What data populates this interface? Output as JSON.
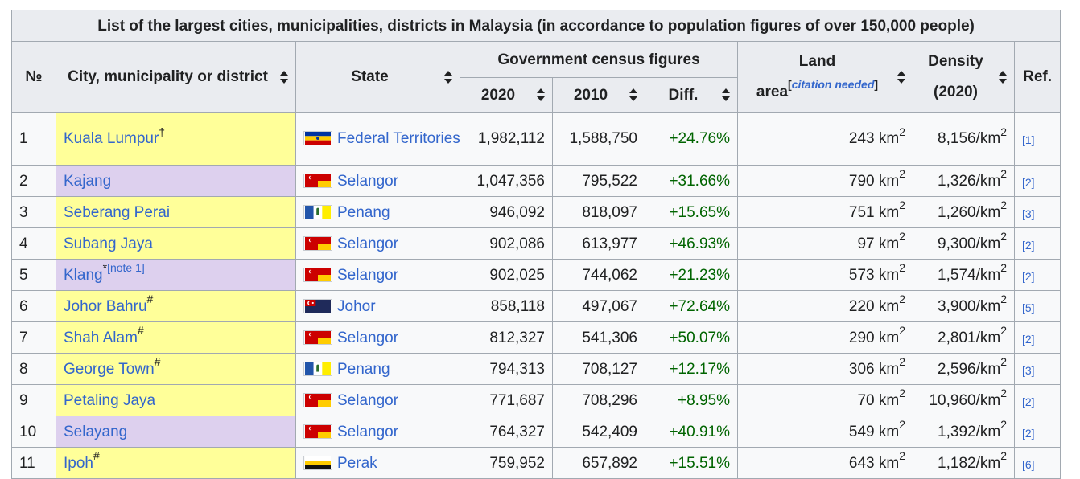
{
  "caption": "List of the largest cities, municipalities, districts in Malaysia (in accordance to population figures of over 150,000 people)",
  "headers": {
    "no": "№",
    "city": "City, municipality or district",
    "state": "State",
    "census_group": "Government census figures",
    "y2020": "2020",
    "y2010": "2010",
    "diff": "Diff.",
    "land_a": "Land",
    "land_b": "area",
    "citation_needed": "citation needed",
    "density_a": "Density",
    "density_b": "(2020)",
    "ref": "Ref."
  },
  "unit_area": "km",
  "unit_density": "/km",
  "superscript_2": "2",
  "rows": [
    {
      "no": "1",
      "city": "Kuala Lumpur",
      "mark": "†",
      "state": "Federal Territories",
      "flag": "federal-territories-flag-icon",
      "p2020": "1,982,112",
      "p2010": "1,588,750",
      "diff": "+24.76%",
      "area": "243",
      "density": "8,156",
      "ref": "[1]",
      "bg": "yellow"
    },
    {
      "no": "2",
      "city": "Kajang",
      "mark": "",
      "state": "Selangor",
      "flag": "selangor-flag-icon",
      "p2020": "1,047,356",
      "p2010": "795,522",
      "diff": "+31.66%",
      "area": "790",
      "density": "1,326",
      "ref": "[2]",
      "bg": "purple"
    },
    {
      "no": "3",
      "city": "Seberang Perai",
      "mark": "",
      "state": "Penang",
      "flag": "penang-flag-icon",
      "p2020": "946,092",
      "p2010": "818,097",
      "diff": "+15.65%",
      "area": "751",
      "density": "1,260",
      "ref": "[3]",
      "bg": "yellow"
    },
    {
      "no": "4",
      "city": "Subang Jaya",
      "mark": "",
      "state": "Selangor",
      "flag": "selangor-flag-icon",
      "p2020": "902,086",
      "p2010": "613,977",
      "diff": "+46.93%",
      "area": "97",
      "density": "9,300",
      "ref": "[2]",
      "bg": "yellow"
    },
    {
      "no": "5",
      "city": "Klang",
      "mark": "*",
      "note": "[note 1]",
      "state": "Selangor",
      "flag": "selangor-flag-icon",
      "p2020": "902,025",
      "p2010": "744,062",
      "diff": "+21.23%",
      "area": "573",
      "density": "1,574",
      "ref": "[2]",
      "bg": "purple"
    },
    {
      "no": "6",
      "city": "Johor Bahru",
      "mark": "#",
      "state": "Johor",
      "flag": "johor-flag-icon",
      "p2020": "858,118",
      "p2010": "497,067",
      "diff": "+72.64%",
      "area": "220",
      "density": "3,900",
      "ref": "[5]",
      "bg": "yellow"
    },
    {
      "no": "7",
      "city": "Shah Alam",
      "mark": "#",
      "state": "Selangor",
      "flag": "selangor-flag-icon",
      "p2020": "812,327",
      "p2010": "541,306",
      "diff": "+50.07%",
      "area": "290",
      "density": "2,801",
      "ref": "[2]",
      "bg": "yellow"
    },
    {
      "no": "8",
      "city": "George Town",
      "mark": "#",
      "state": "Penang",
      "flag": "penang-flag-icon",
      "p2020": "794,313",
      "p2010": "708,127",
      "diff": "+12.17%",
      "area": "306",
      "density": "2,596",
      "ref": "[3]",
      "bg": "yellow"
    },
    {
      "no": "9",
      "city": "Petaling Jaya",
      "mark": "",
      "state": "Selangor",
      "flag": "selangor-flag-icon",
      "p2020": "771,687",
      "p2010": "708,296",
      "diff": "+8.95%",
      "area": "70",
      "density": "10,960",
      "ref": "[2]",
      "bg": "yellow"
    },
    {
      "no": "10",
      "city": "Selayang",
      "mark": "",
      "state": "Selangor",
      "flag": "selangor-flag-icon",
      "p2020": "764,327",
      "p2010": "542,409",
      "diff": "+40.91%",
      "area": "549",
      "density": "1,392",
      "ref": "[2]",
      "bg": "purple"
    },
    {
      "no": "11",
      "city": "Ipoh",
      "mark": "#",
      "state": "Perak",
      "flag": "perak-flag-icon",
      "p2020": "759,952",
      "p2010": "657,892",
      "diff": "+15.51%",
      "area": "643",
      "density": "1,182",
      "ref": "[6]",
      "bg": "yellow"
    }
  ]
}
